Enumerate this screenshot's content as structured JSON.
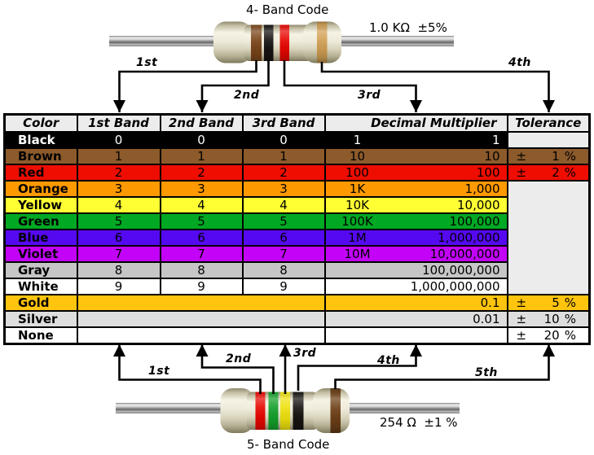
{
  "top_section": {
    "title": "4- Band Code",
    "value_label": "1.0 KΩ  ±5%",
    "bands": [
      {
        "name": "brown",
        "color": "#7A451A"
      },
      {
        "name": "black",
        "color": "#161311"
      },
      {
        "name": "red",
        "color": "#E80600"
      },
      {
        "name": "gold",
        "color": "#D2A054"
      }
    ],
    "arrow_labels": [
      "1st",
      "2nd",
      "3rd",
      "4th"
    ]
  },
  "bottom_section": {
    "title": "5- Band Code",
    "value_label": "254 Ω  ±1 %",
    "bands": [
      {
        "name": "red",
        "color": "#E80600"
      },
      {
        "name": "green",
        "color": "#14A02A"
      },
      {
        "name": "yellow",
        "color": "#EFE20E"
      },
      {
        "name": "black",
        "color": "#161311"
      },
      {
        "name": "brown",
        "color": "#6E4018"
      }
    ],
    "arrow_labels": [
      "1st",
      "2nd",
      "3rd",
      "4th",
      "5th"
    ]
  },
  "table": {
    "headers": [
      "Color",
      "1st Band",
      "2nd Band",
      "3rd Band",
      "Decimal Multiplier",
      "Tolerance"
    ],
    "header_bg": "#ECECEC",
    "merged_tolerance_bg": "#ECECEC",
    "rows": [
      {
        "color": "Black",
        "bg": "#000000",
        "text": "#FFFFFF",
        "bands": [
          "0",
          "0",
          "0"
        ],
        "mult_short": "1",
        "mult_full": "1",
        "tolerance": null,
        "tol_bg": "#ECECEC"
      },
      {
        "color": "Brown",
        "bg": "#8C5A2B",
        "text": "#000000",
        "bands": [
          "1",
          "1",
          "1"
        ],
        "mult_short": "10",
        "mult_full": "10",
        "tolerance": {
          "sign": "±",
          "value": "1",
          "unit": "%"
        },
        "tol_bg": "#8C5A2B"
      },
      {
        "color": "Red",
        "bg": "#EE0D00",
        "text": "#000000",
        "bands": [
          "2",
          "2",
          "2"
        ],
        "mult_short": "100",
        "mult_full": "100",
        "tolerance": {
          "sign": "±",
          "value": "2",
          "unit": "%"
        },
        "tol_bg": "#EE0D00"
      },
      {
        "color": "Orange",
        "bg": "#FF9900",
        "text": "#000000",
        "bands": [
          "3",
          "3",
          "3"
        ],
        "mult_short": "1K",
        "mult_full": "1,000",
        "tolerance": "merged"
      },
      {
        "color": "Yellow",
        "bg": "#FFFF33",
        "text": "#000000",
        "bands": [
          "4",
          "4",
          "4"
        ],
        "mult_short": "10K",
        "mult_full": "10,000",
        "tolerance": "spanned"
      },
      {
        "color": "Green",
        "bg": "#00A823",
        "text": "#000000",
        "bands": [
          "5",
          "5",
          "5"
        ],
        "mult_short": "100K",
        "mult_full": "100,000",
        "tolerance": "spanned"
      },
      {
        "color": "Blue",
        "bg": "#5509F0",
        "text": "#000000",
        "bands": [
          "6",
          "6",
          "6"
        ],
        "mult_short": "1M",
        "mult_full": "1,000,000",
        "tolerance": "spanned"
      },
      {
        "color": "Violet",
        "bg": "#C203F7",
        "text": "#000000",
        "bands": [
          "7",
          "7",
          "7"
        ],
        "mult_short": "10M",
        "mult_full": "10,000,000",
        "tolerance": "spanned"
      },
      {
        "color": "Gray",
        "bg": "#C6C6C6",
        "text": "#000000",
        "bands": [
          "8",
          "8",
          "8"
        ],
        "mult_short": "",
        "mult_full": "100,000,000",
        "tolerance": "spanned"
      },
      {
        "color": "White",
        "bg": "#FFFFFF",
        "text": "#000000",
        "bands": [
          "9",
          "9",
          "9"
        ],
        "mult_short": "",
        "mult_full": "1,000,000,000",
        "tolerance": "spanned"
      },
      {
        "color": "Gold",
        "bg": "#FFC40E",
        "text": "#000000",
        "bands_merged": true,
        "mult_short": "",
        "mult_full": "0.1",
        "tolerance": {
          "sign": "±",
          "value": "5",
          "unit": "%"
        },
        "tol_bg": "#FFC40E"
      },
      {
        "color": "Silver",
        "bg": "#DEDEDE",
        "text": "#000000",
        "bands_merged": true,
        "mult_short": "",
        "mult_full": "0.01",
        "tolerance": {
          "sign": "±",
          "value": "10",
          "unit": "%"
        },
        "tol_bg": "#DEDEDE"
      },
      {
        "color": "None",
        "bg": "#FFFFFF",
        "text": "#000000",
        "bands_merged": true,
        "mult_short": "",
        "mult_full": "",
        "tolerance": {
          "sign": "±",
          "value": "20",
          "unit": "%"
        },
        "tol_bg": "#FFFFFF"
      }
    ]
  }
}
